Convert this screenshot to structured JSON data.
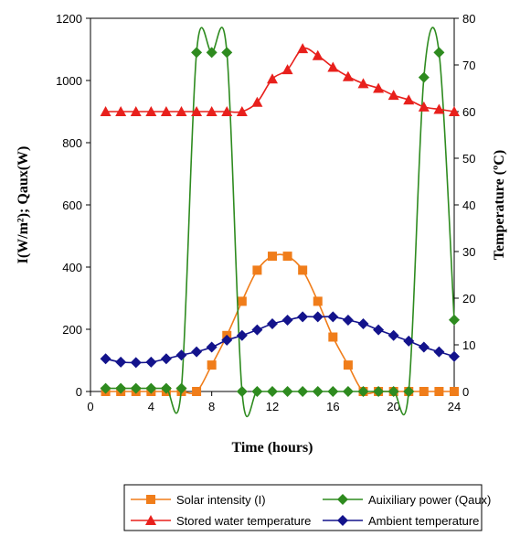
{
  "chart_data": {
    "type": "line",
    "xlabel": "Time (hours)",
    "ylabel_left": "I(W/m²); Qaux(W)",
    "ylabel_right": "Temperature (ºC)",
    "xlim": [
      0,
      24
    ],
    "ylim_left": [
      0,
      1200
    ],
    "ylim_right": [
      0,
      80
    ],
    "x_ticks": [
      0,
      4,
      8,
      12,
      16,
      20,
      24
    ],
    "y_ticks_left": [
      0,
      200,
      400,
      600,
      800,
      1000,
      1200
    ],
    "y_ticks_right": [
      0,
      10,
      20,
      30,
      40,
      50,
      60,
      70,
      80
    ],
    "legend_position": "bottom",
    "grid": false,
    "series": [
      {
        "name": "Solar intensity (I)",
        "axis": "left",
        "color": "#F07D1A",
        "marker": "square",
        "x": [
          1,
          2,
          3,
          4,
          5,
          6,
          7,
          8,
          9,
          10,
          11,
          12,
          13,
          14,
          15,
          16,
          17,
          18,
          19,
          20,
          21,
          22,
          23,
          24
        ],
        "y": [
          0,
          0,
          0,
          0,
          0,
          0,
          0,
          85,
          180,
          290,
          390,
          435,
          435,
          390,
          290,
          175,
          85,
          0,
          0,
          0,
          0,
          0,
          0,
          0
        ]
      },
      {
        "name": "Auixiliary power (Qaux)",
        "axis": "left",
        "color": "#2E8B1F",
        "marker": "diamond",
        "x": [
          1,
          2,
          3,
          4,
          5,
          6,
          7,
          8,
          9,
          10,
          11,
          12,
          13,
          14,
          15,
          16,
          17,
          18,
          19,
          20,
          21,
          22,
          23,
          24
        ],
        "y": [
          10,
          10,
          10,
          10,
          10,
          10,
          1090,
          1090,
          1090,
          0,
          0,
          0,
          0,
          0,
          0,
          0,
          0,
          0,
          0,
          0,
          0,
          1010,
          1090,
          230
        ]
      },
      {
        "name": "Stored water temperature",
        "axis": "right",
        "color": "#E8201C",
        "marker": "triangle",
        "x": [
          1,
          2,
          3,
          4,
          5,
          6,
          7,
          8,
          9,
          10,
          11,
          12,
          13,
          14,
          15,
          16,
          17,
          18,
          19,
          20,
          21,
          22,
          23,
          24
        ],
        "y": [
          60,
          60,
          60,
          60,
          60,
          60,
          60,
          60,
          60,
          60,
          62,
          67,
          69,
          73.5,
          72,
          69.5,
          67.5,
          66,
          65,
          63.5,
          62.5,
          61,
          60.5,
          60
        ]
      },
      {
        "name": "Ambient temperature",
        "axis": "right",
        "color": "#13138C",
        "marker": "diamond",
        "x": [
          1,
          2,
          3,
          4,
          5,
          6,
          7,
          8,
          9,
          10,
          11,
          12,
          13,
          14,
          15,
          16,
          17,
          18,
          19,
          20,
          21,
          22,
          23,
          24
        ],
        "y": [
          7,
          6.3,
          6.2,
          6.3,
          7,
          7.8,
          8.5,
          9.5,
          11,
          12,
          13.2,
          14.5,
          15.3,
          16,
          16,
          16,
          15.3,
          14.5,
          13.2,
          12,
          10.8,
          9.5,
          8.5,
          7.5
        ]
      }
    ]
  }
}
